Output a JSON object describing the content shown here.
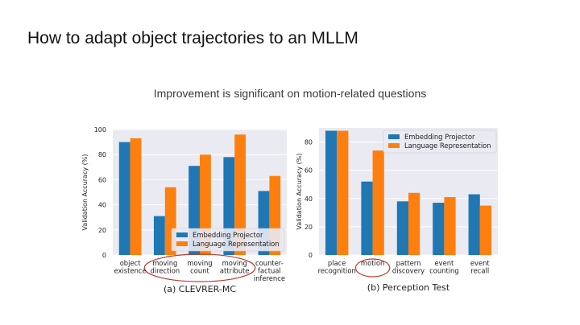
{
  "slide": {
    "title": "How to adapt object trajectories to an MLLM",
    "subtitle": "Improvement is significant on motion-related questions"
  },
  "colors": {
    "embedding": "#1f77b4",
    "language": "#ff7f0e",
    "plot_bg": "#eaeaf2",
    "highlight": "#c0392b"
  },
  "chart_data": [
    {
      "type": "bar",
      "caption": "(a) CLEVRER-MC",
      "ylabel": "Validation Accuracy (%)",
      "ylim": [
        0,
        100
      ],
      "yticks": [
        0,
        20,
        40,
        60,
        80,
        100
      ],
      "categories": [
        [
          "object",
          "existence"
        ],
        [
          "moving",
          "direction"
        ],
        [
          "moving",
          "count"
        ],
        [
          "moving",
          "attribute"
        ],
        [
          "counter-",
          "factual",
          "inference"
        ]
      ],
      "series": [
        {
          "name": "Embedding Projector",
          "values": [
            90,
            31,
            71,
            78,
            51
          ]
        },
        {
          "name": "Language Representation",
          "values": [
            93,
            54,
            80,
            96,
            63
          ]
        }
      ],
      "legend": "lower-right",
      "grid": true,
      "highlighted_categories": [
        1,
        2,
        3
      ]
    },
    {
      "type": "bar",
      "caption": "(b) Perception Test",
      "ylabel": "Validation Accuracy (%)",
      "ylim": [
        0,
        90
      ],
      "yticks": [
        0,
        20,
        40,
        60,
        80
      ],
      "categories": [
        [
          "place",
          "recognition"
        ],
        [
          "motion"
        ],
        [
          "pattern",
          "discovery"
        ],
        [
          "event",
          "counting"
        ],
        [
          "event",
          "recall"
        ]
      ],
      "series": [
        {
          "name": "Embedding Projector",
          "values": [
            88,
            52,
            38,
            37,
            43
          ]
        },
        {
          "name": "Language Representation",
          "values": [
            88,
            74,
            44,
            41,
            35
          ]
        }
      ],
      "legend": "upper-right",
      "grid": true,
      "highlighted_categories": [
        1
      ]
    }
  ]
}
